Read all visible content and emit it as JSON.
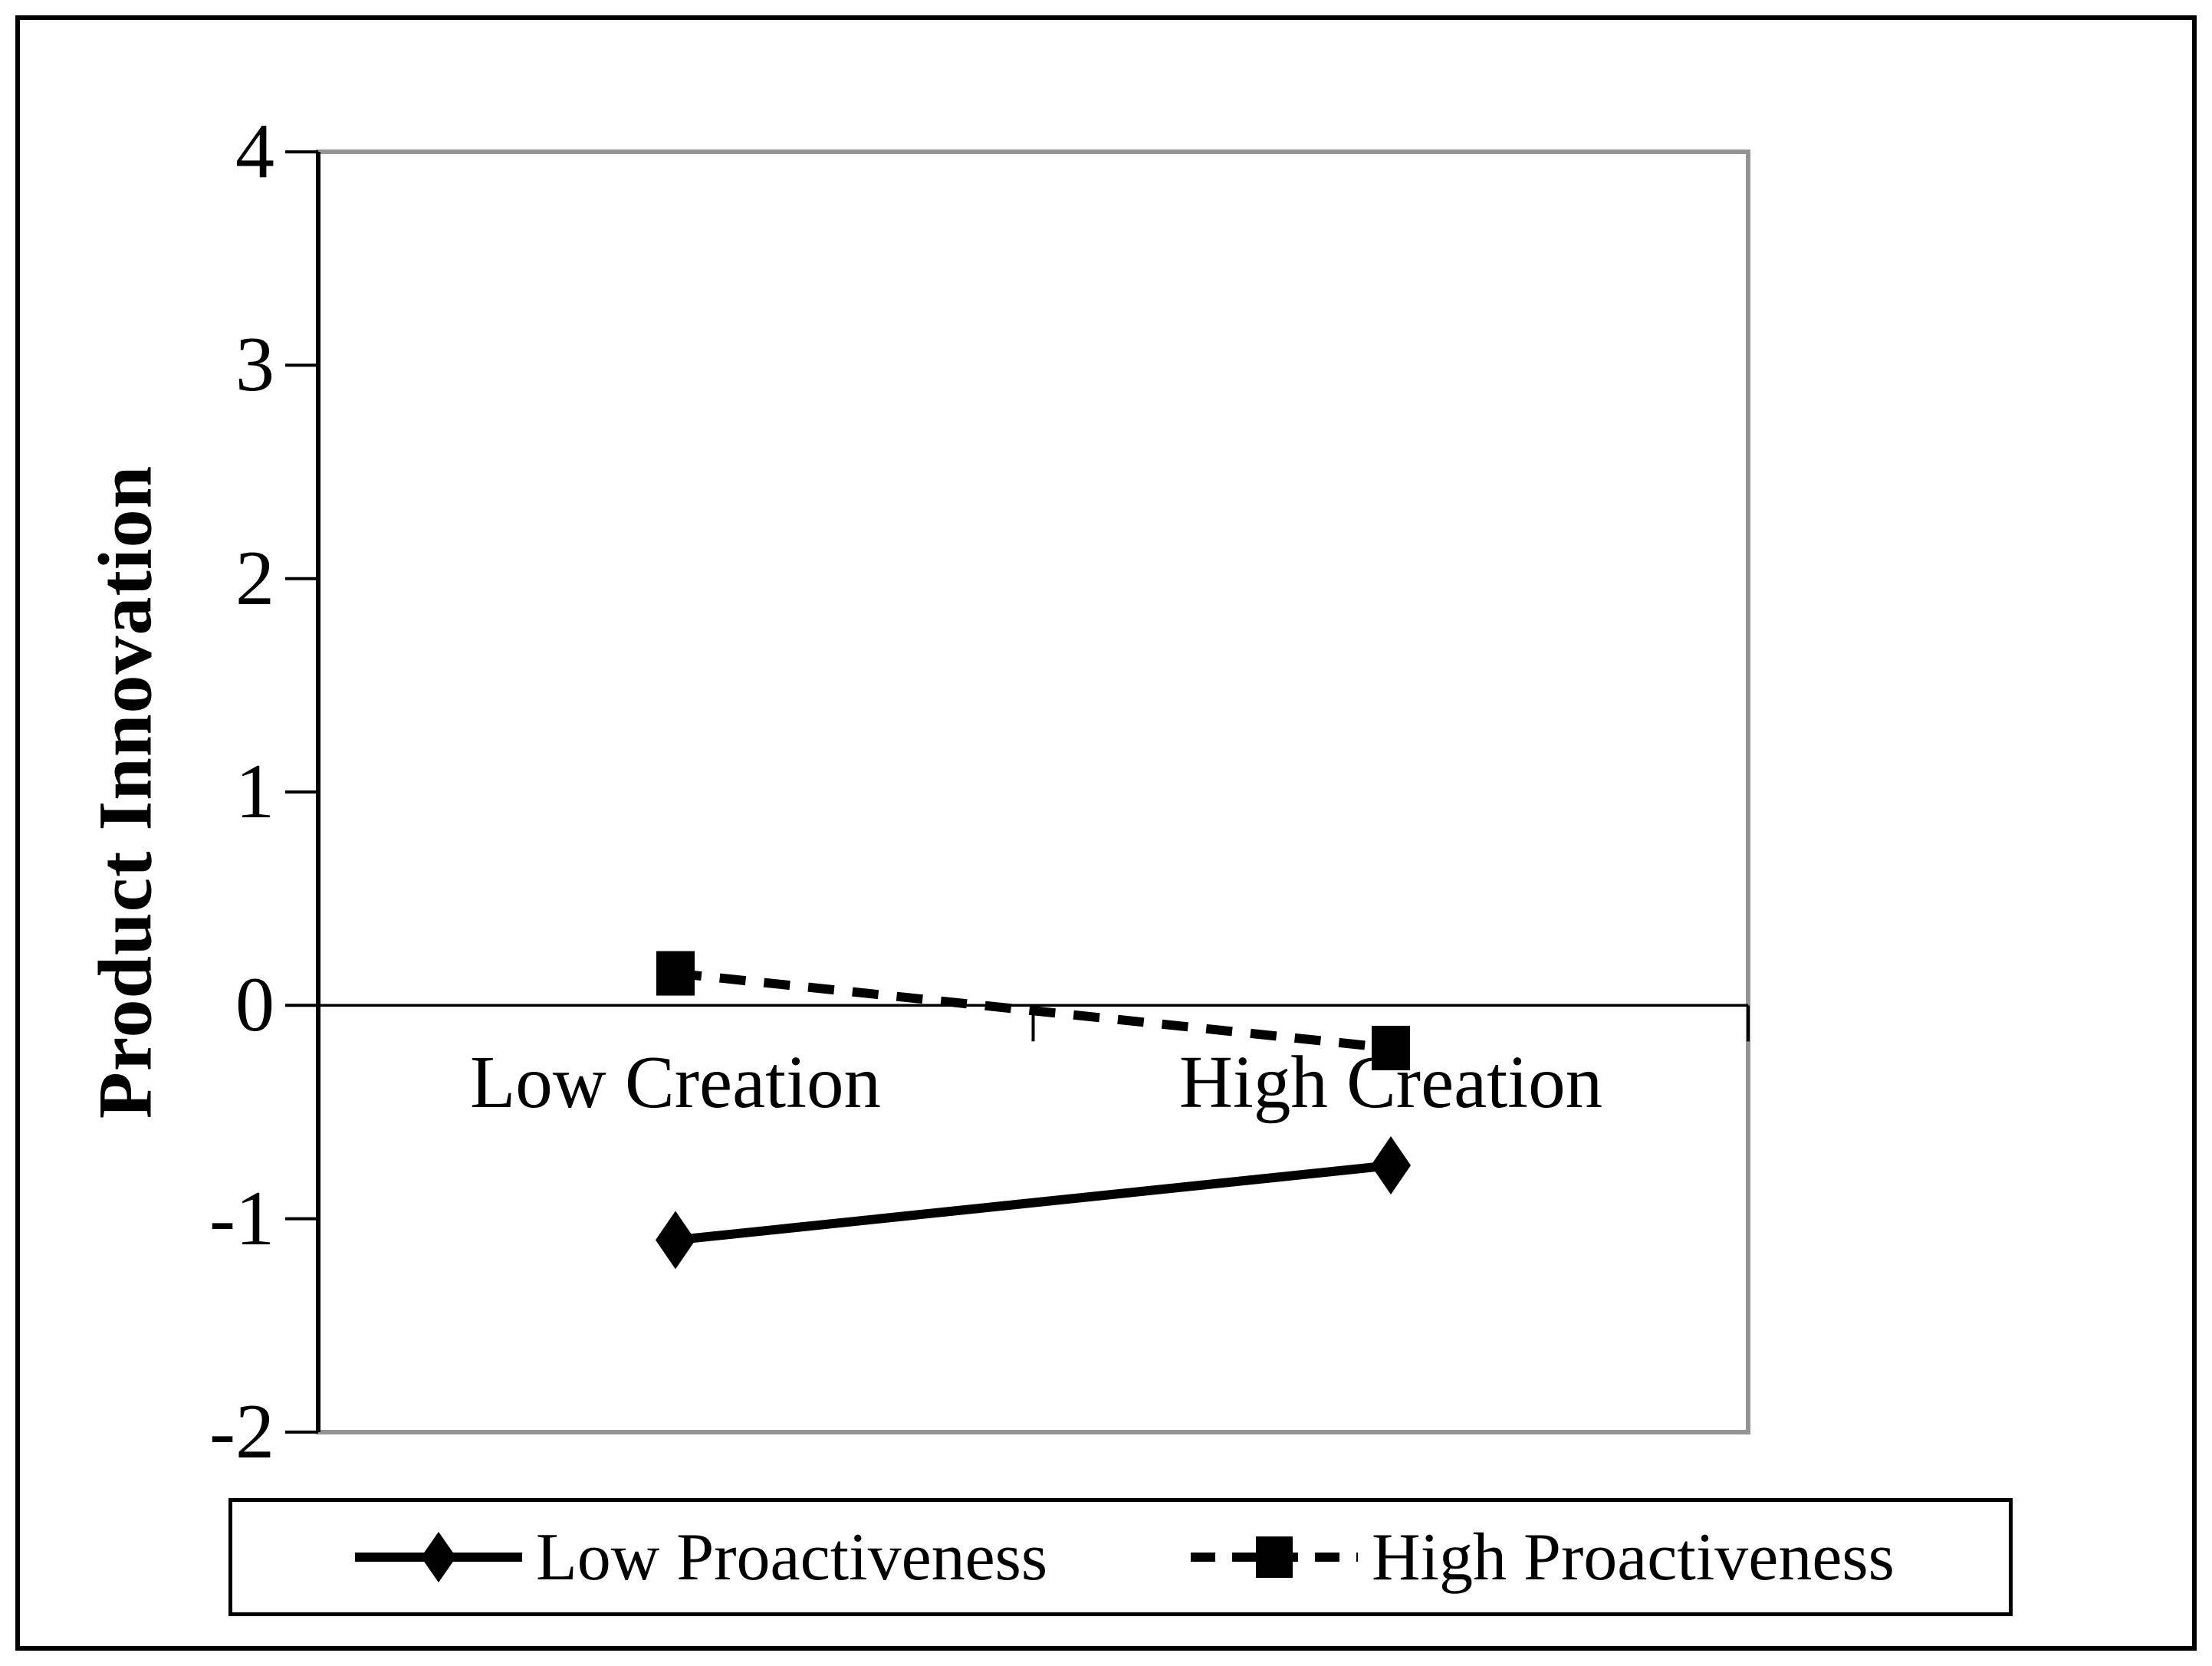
{
  "figure": {
    "background": "#ffffff",
    "outer_border_color": "#000000",
    "plot_border_color": "#949494",
    "axis_color": "#000000",
    "series_color": "#000000"
  },
  "chart_data": {
    "type": "line",
    "title": "",
    "xlabel": "",
    "ylabel": "Product Innovation",
    "categories": [
      "Low Creation",
      "High Creation"
    ],
    "series": [
      {
        "name": "Low Proactiveness",
        "values": [
          -1.1,
          -0.75
        ],
        "line_style": "solid",
        "marker": "diamond",
        "color": "#000000"
      },
      {
        "name": "High Proactiveness",
        "values": [
          0.15,
          -0.2
        ],
        "line_style": "dashed",
        "marker": "square",
        "color": "#000000"
      }
    ],
    "ylim": [
      -2,
      4
    ],
    "ytick_values": [
      4,
      3,
      2,
      1,
      0,
      -1,
      -2
    ],
    "ytick_labels": [
      "4",
      "3",
      "2",
      "1",
      "0",
      "-1",
      "-2"
    ],
    "grid": "zero-line-only",
    "legend_position": "bottom"
  }
}
